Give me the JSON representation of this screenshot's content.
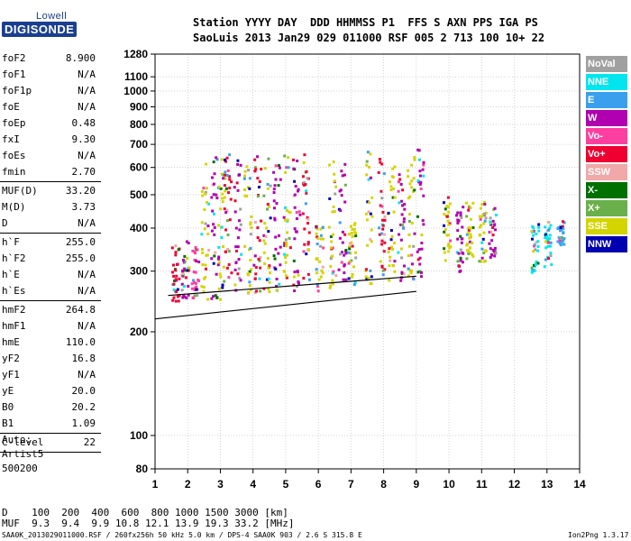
{
  "logo": {
    "top": "Lowell",
    "main": "DIGISONDE"
  },
  "header": {
    "line1": "Station YYYY DAY  DDD HHMMSS P1  FFS S AXN PPS IGA PS",
    "line2": "SaoLuis 2013 Jan29 029 011000 RSF 005 2 713 100 10+ 22"
  },
  "params": [
    {
      "k": "foF2",
      "v": "8.900"
    },
    {
      "k": "foF1",
      "v": "N/A"
    },
    {
      "k": "foF1p",
      "v": "N/A"
    },
    {
      "k": "foE",
      "v": "N/A"
    },
    {
      "k": "foEp",
      "v": "0.48"
    },
    {
      "k": "fxI",
      "v": "9.30"
    },
    {
      "k": "foEs",
      "v": "N/A"
    },
    {
      "k": "fmin",
      "v": "2.70"
    },
    {
      "sep": true
    },
    {
      "k": "MUF(D)",
      "v": "33.20"
    },
    {
      "k": "M(D)",
      "v": "3.73"
    },
    {
      "k": "D",
      "v": "N/A"
    },
    {
      "sep": true
    },
    {
      "k": "h`F",
      "v": "255.0"
    },
    {
      "k": "h`F2",
      "v": "255.0"
    },
    {
      "k": "h`E",
      "v": "N/A"
    },
    {
      "k": "h`Es",
      "v": "N/A"
    },
    {
      "sep": true
    },
    {
      "k": "hmF2",
      "v": "264.8"
    },
    {
      "k": "hmF1",
      "v": "N/A"
    },
    {
      "k": "hmE",
      "v": "110.0"
    },
    {
      "k": "yF2",
      "v": "16.8"
    },
    {
      "k": "yF1",
      "v": "N/A"
    },
    {
      "k": "yE",
      "v": "20.0"
    },
    {
      "k": "B0",
      "v": "20.2"
    },
    {
      "k": "B1",
      "v": "1.09"
    },
    {
      "sep": true
    },
    {
      "k": "C-level",
      "v": "22"
    },
    {
      "sep": true
    }
  ],
  "auto": [
    "Auto:",
    "Artist5",
    "500200"
  ],
  "footer": {
    "d_line": "D    100  200  400  600  800 1000 1500 3000 [km]",
    "muf_line": "MUF  9.3  9.4  9.9 10.8 12.1 13.9 19.3 33.2 [MHz]",
    "file_line": "SAA0K_2013029011000.RSF / 260fx256h 50 kHz 5.0 km / DPS-4 SAA0K 903 / 2.6 S 315.8 E",
    "version": "Ion2Png 1.3.17"
  },
  "legend": [
    {
      "label": "NoVal",
      "color": "#a0a0a0"
    },
    {
      "label": "NNE",
      "color": "#00e5ee"
    },
    {
      "label": "E",
      "color": "#3aa0ee"
    },
    {
      "label": "W",
      "color": "#b000b0"
    },
    {
      "label": "Vo-",
      "color": "#ff3fa0"
    },
    {
      "label": "Vo+",
      "color": "#ee0030"
    },
    {
      "label": "SSW",
      "color": "#f0a8a8"
    },
    {
      "label": "X-",
      "color": "#007000"
    },
    {
      "label": "X+",
      "color": "#6ab04a"
    },
    {
      "label": "SSE",
      "color": "#d4d400"
    },
    {
      "label": "NNW",
      "color": "#0000b0"
    }
  ],
  "chart_data": {
    "type": "scatter",
    "xlim": [
      1,
      14
    ],
    "x_ticks": [
      1,
      2,
      3,
      4,
      5,
      6,
      7,
      8,
      9,
      10,
      11,
      12,
      13,
      14
    ],
    "y_scale": "log",
    "ylim": [
      80,
      1280
    ],
    "y_ticks": [
      80,
      100,
      200,
      300,
      400,
      500,
      600,
      700,
      800,
      900,
      1000,
      1100,
      1280
    ],
    "grid": true,
    "traces": [
      {
        "f": 1.6,
        "h": [
          240,
          360
        ],
        "c": "#ee0030"
      },
      {
        "f": 1.9,
        "h": [
          250,
          370
        ],
        "c": "#b000b0"
      },
      {
        "f": 2.2,
        "h": [
          245,
          360
        ],
        "c": "#ff3fa0"
      },
      {
        "f": 2.5,
        "h": [
          250,
          650
        ],
        "c": "#d4d400"
      },
      {
        "f": 2.8,
        "h": [
          250,
          660
        ],
        "c": "#b000b0"
      },
      {
        "f": 3.0,
        "h": [
          250,
          700
        ],
        "c": "#d4d400"
      },
      {
        "f": 3.2,
        "h": [
          260,
          680
        ],
        "c": "#ee0030"
      },
      {
        "f": 3.5,
        "h": [
          260,
          640
        ],
        "c": "#b000b0"
      },
      {
        "f": 3.8,
        "h": [
          260,
          620
        ],
        "c": "#d4d400"
      },
      {
        "f": 4.1,
        "h": [
          260,
          660
        ],
        "c": "#ee0030"
      },
      {
        "f": 4.4,
        "h": [
          260,
          650
        ],
        "c": "#d4d400"
      },
      {
        "f": 4.7,
        "h": [
          260,
          620
        ],
        "c": "#b000b0"
      },
      {
        "f": 5.0,
        "h": [
          260,
          660
        ],
        "c": "#d4d400"
      },
      {
        "f": 5.3,
        "h": [
          265,
          640
        ],
        "c": "#b000b0"
      },
      {
        "f": 5.6,
        "h": [
          265,
          660
        ],
        "c": "#ee0030"
      },
      {
        "f": 6.0,
        "h": [
          265,
          420
        ],
        "c": "#d4d400"
      },
      {
        "f": 6.4,
        "h": [
          270,
          660
        ],
        "c": "#d4d400"
      },
      {
        "f": 6.7,
        "h": [
          270,
          640
        ],
        "c": "#b000b0"
      },
      {
        "f": 7.0,
        "h": [
          275,
          420
        ],
        "c": "#d4d400"
      },
      {
        "f": 7.5,
        "h": [
          275,
          680
        ],
        "c": "#d4d400"
      },
      {
        "f": 7.9,
        "h": [
          275,
          660
        ],
        "c": "#ee0030"
      },
      {
        "f": 8.2,
        "h": [
          280,
          620
        ],
        "c": "#d4d400"
      },
      {
        "f": 8.5,
        "h": [
          280,
          600
        ],
        "c": "#b000b0"
      },
      {
        "f": 8.8,
        "h": [
          285,
          680
        ],
        "c": "#d4d400"
      },
      {
        "f": 9.1,
        "h": [
          290,
          700
        ],
        "c": "#b000b0"
      },
      {
        "f": 9.9,
        "h": [
          300,
          500
        ],
        "c": "#d4d400"
      },
      {
        "f": 10.3,
        "h": [
          300,
          470
        ],
        "c": "#b000b0"
      },
      {
        "f": 10.6,
        "h": [
          320,
          480
        ],
        "c": "#d4d400"
      },
      {
        "f": 11.0,
        "h": [
          320,
          480
        ],
        "c": "#d4d400"
      },
      {
        "f": 11.3,
        "h": [
          320,
          470
        ],
        "c": "#b000b0"
      },
      {
        "f": 12.6,
        "h": [
          300,
          430
        ],
        "c": "#00e5ee"
      },
      {
        "f": 13.0,
        "h": [
          310,
          420
        ],
        "c": "#00e5ee"
      },
      {
        "f": 13.4,
        "h": [
          360,
          430
        ],
        "c": "#3aa0ee"
      }
    ],
    "trace_lines": [
      {
        "points": [
          [
            1,
            218
          ],
          [
            9.0,
            262
          ]
        ],
        "color": "#000000",
        "style": "solid"
      },
      {
        "points": [
          [
            1.4,
            255
          ],
          [
            9.0,
            290
          ]
        ],
        "color": "#000000",
        "style": "solid"
      }
    ]
  }
}
